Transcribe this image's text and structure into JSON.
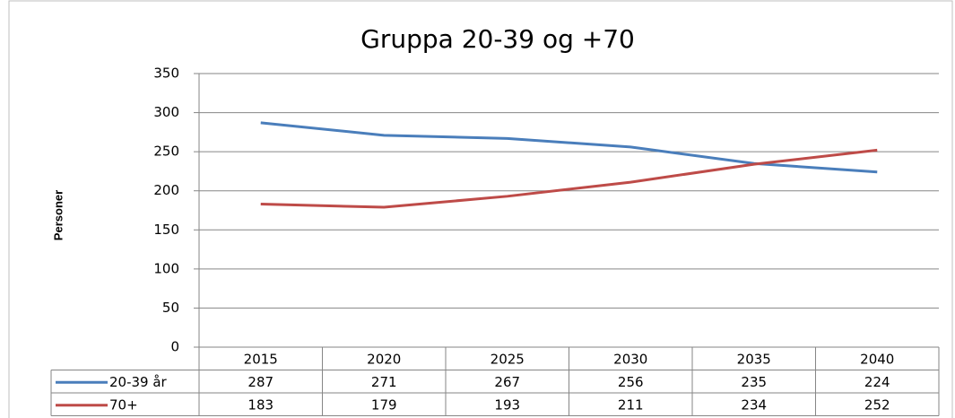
{
  "chart_data": {
    "type": "line",
    "title": "Gruppa 20-39  og +70",
    "y_label": "Personer",
    "categories": [
      "2015",
      "2020",
      "2025",
      "2030",
      "2035",
      "2040"
    ],
    "series": [
      {
        "name": "20-39 år",
        "color": "#4a7ebb",
        "values": [
          287,
          271,
          267,
          256,
          235,
          224
        ]
      },
      {
        "name": "70+",
        "color": "#be4b48",
        "values": [
          183,
          179,
          193,
          211,
          234,
          252
        ]
      }
    ],
    "ylim": [
      0,
      350
    ],
    "yticks": [
      0,
      50,
      100,
      150,
      200,
      250,
      300,
      350
    ],
    "grid": true,
    "data_table": true
  }
}
